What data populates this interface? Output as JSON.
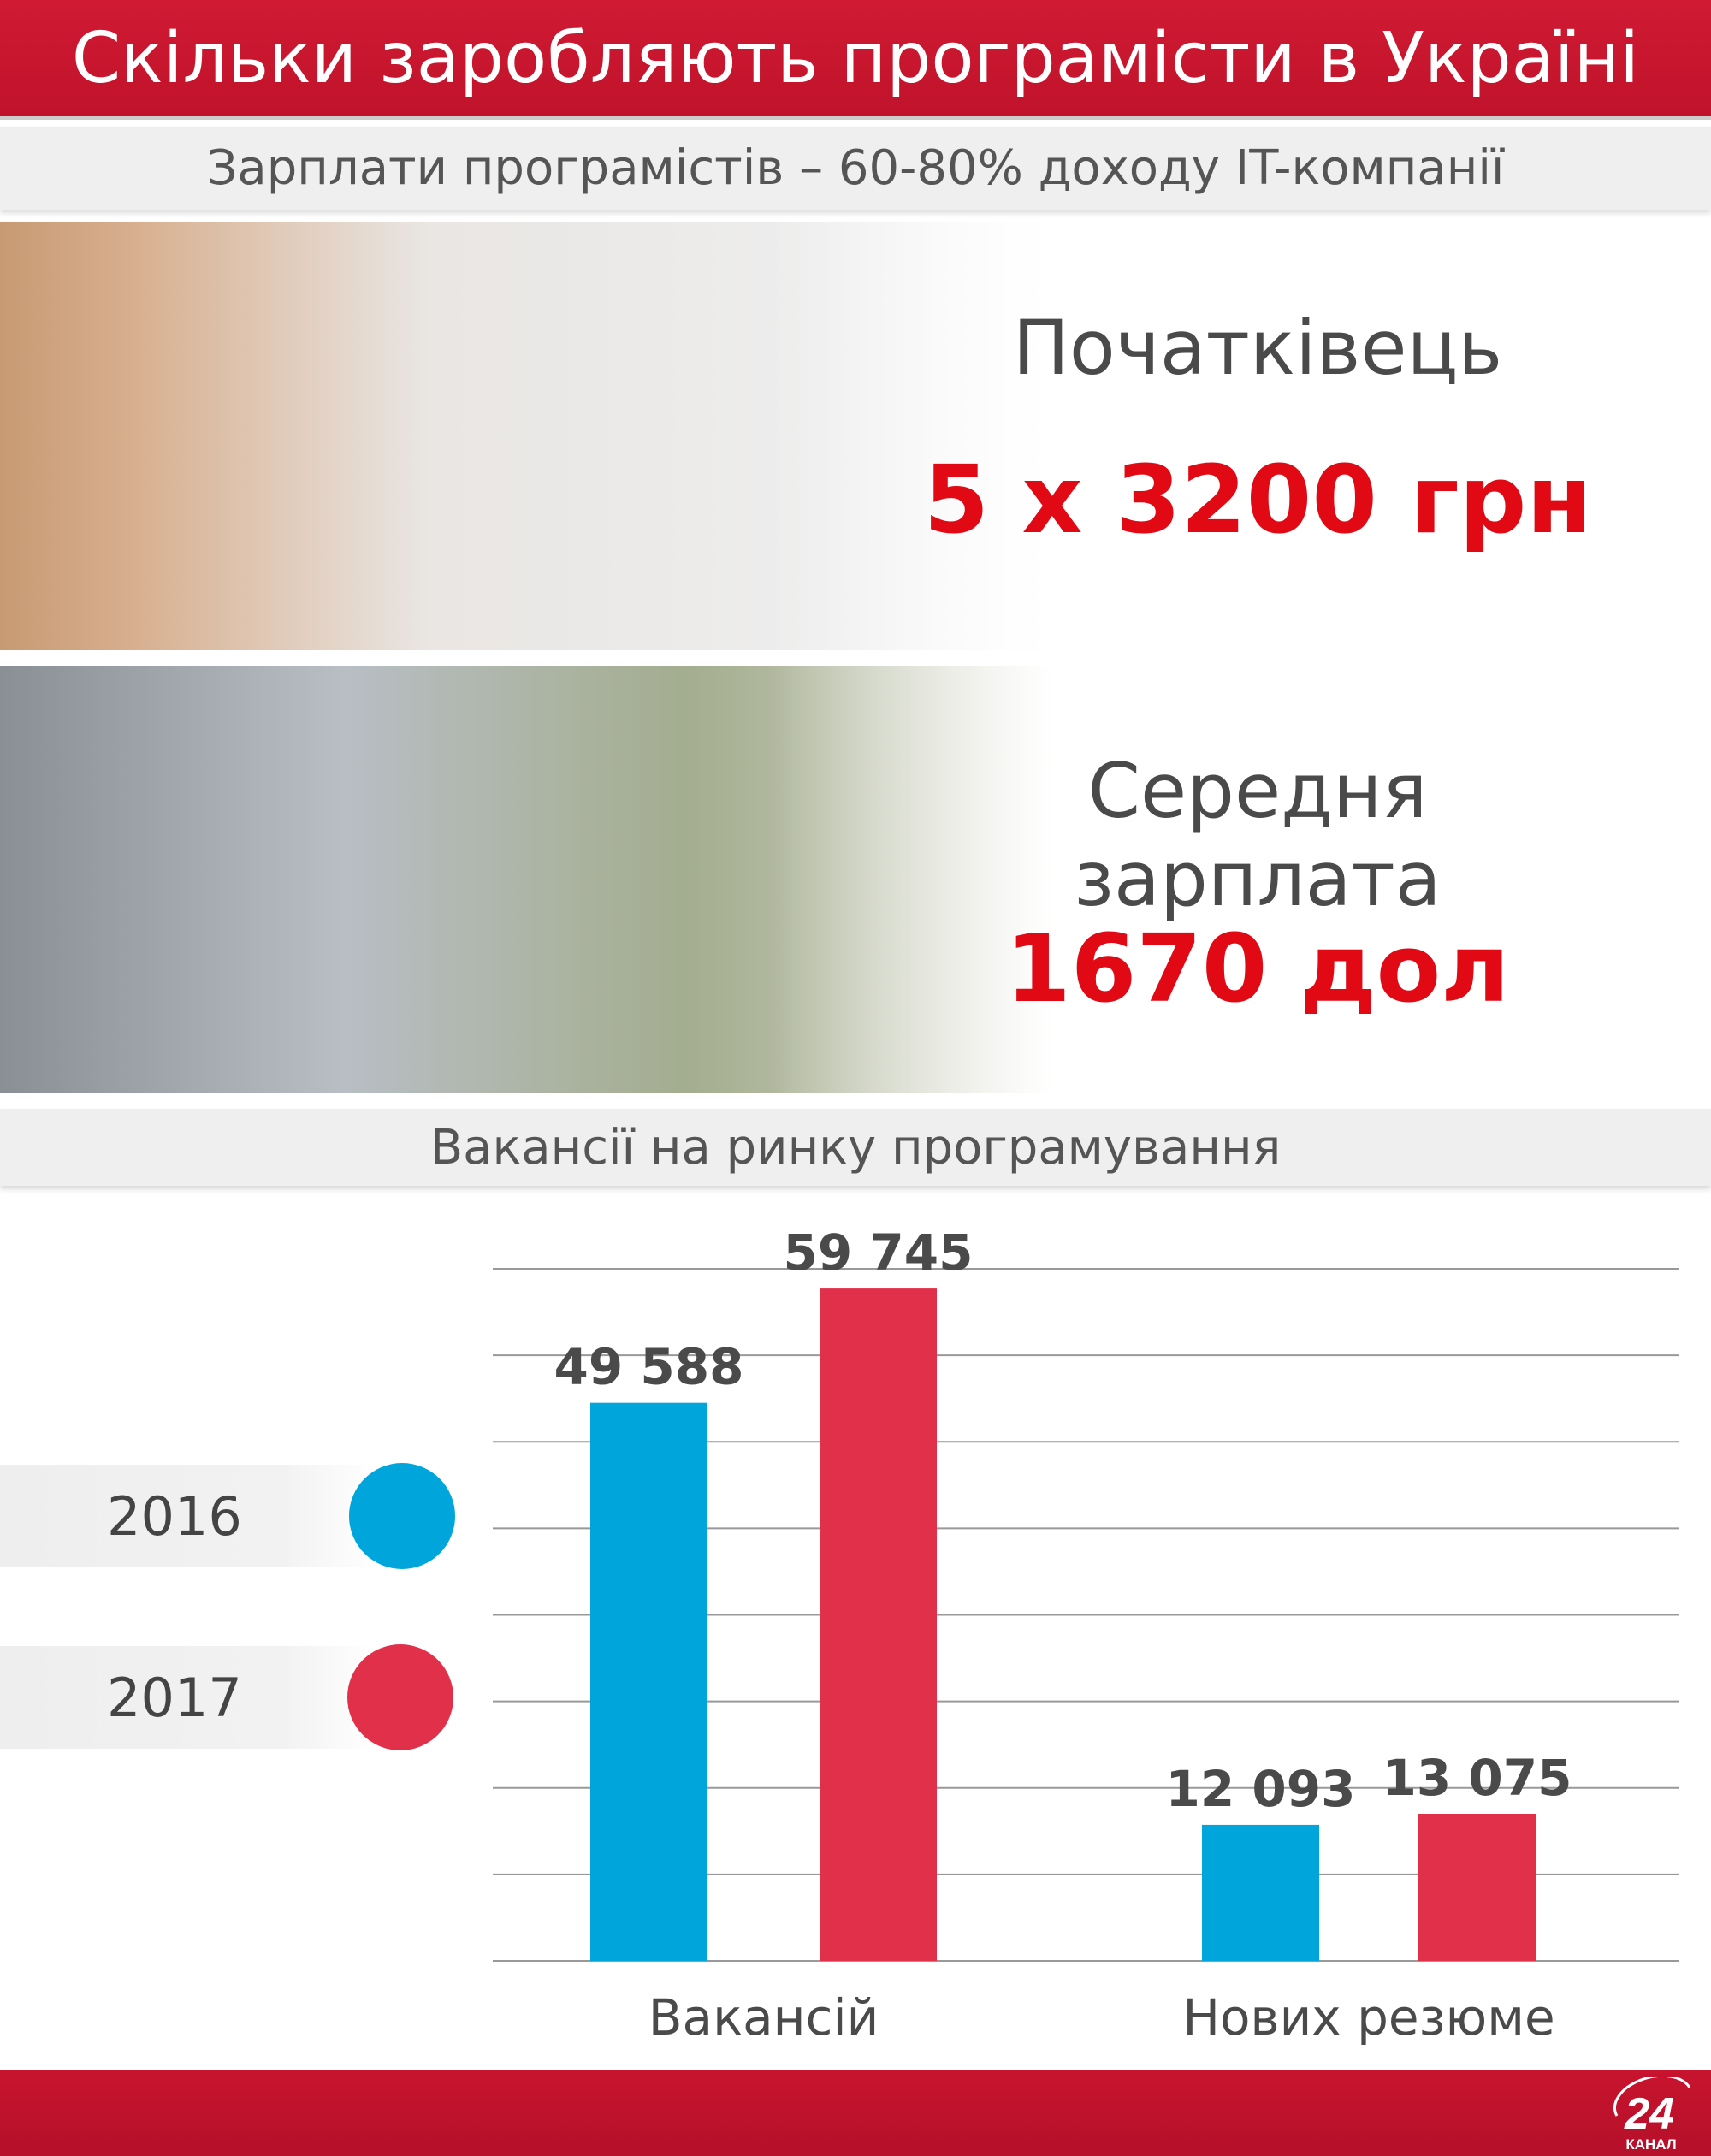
{
  "header": {
    "title": "Скільки заробляють програмісти в Україні",
    "subtitle": "Зарплати програмістів – 60-80% доходу IT-компанії"
  },
  "junior": {
    "label": "Початківець",
    "value": "5 х 3200 грн"
  },
  "average": {
    "label": "Середня зарплата",
    "value": "1670 дол"
  },
  "section_title": "Вакансії на ринку програмування",
  "chart_data": {
    "type": "bar",
    "categories": [
      "Вакансій",
      "Нових резюме"
    ],
    "series": [
      {
        "name": "2016",
        "color": "#00a5dc",
        "values": [
          49588,
          12093
        ],
        "labels": [
          "49 588",
          "12 093"
        ]
      },
      {
        "name": "2017",
        "color": "#e1304a",
        "values": [
          59745,
          13075
        ],
        "labels": [
          "59 745",
          "13 075"
        ]
      }
    ],
    "grid": true,
    "legend": "left"
  },
  "logo": {
    "number": "24",
    "text": "КАНАЛ"
  }
}
